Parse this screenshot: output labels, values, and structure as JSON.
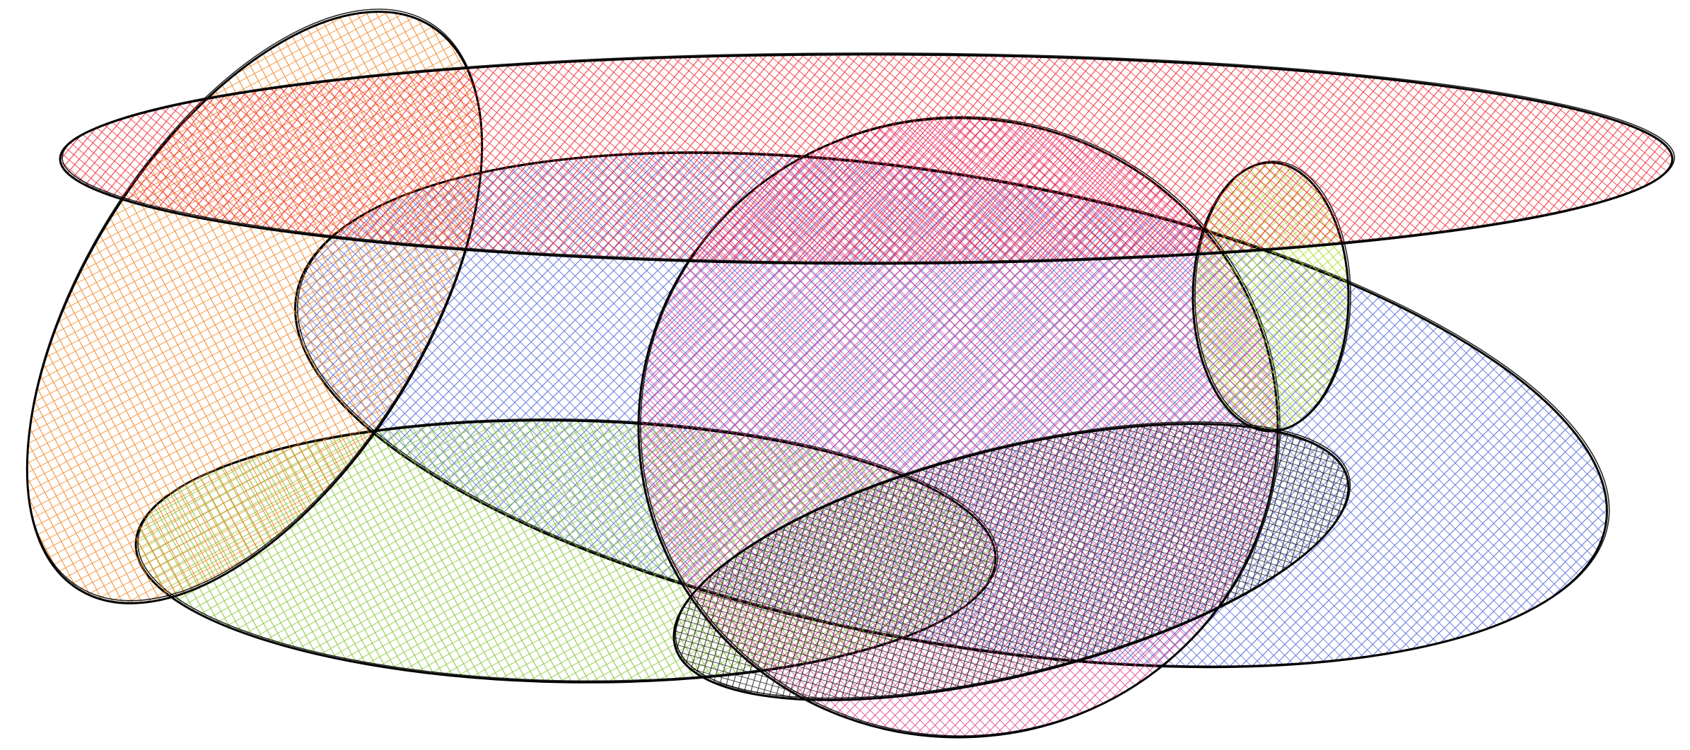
{
  "drawing": {
    "style": "sketchy-hachure",
    "stroke_color": "#000000",
    "background": "#ffffff",
    "shapes": [
      {
        "name": "blue-ellipse",
        "fill": "#4a63d8"
      },
      {
        "name": "green-ellipse",
        "fill": "#7cc225"
      },
      {
        "name": "orange-ellipse",
        "fill": "#f07f14"
      },
      {
        "name": "pink-ellipse",
        "fill": "#e0348a"
      },
      {
        "name": "black-ellipse",
        "fill": "#1a1a1a"
      },
      {
        "name": "lime-ellipse",
        "fill": "#a8d81a"
      },
      {
        "name": "red-ellipse",
        "fill": "#f01c2c"
      }
    ]
  }
}
